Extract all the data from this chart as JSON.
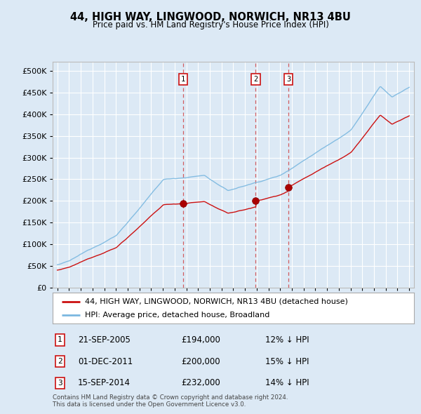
{
  "title": "44, HIGH WAY, LINGWOOD, NORWICH, NR13 4BU",
  "subtitle": "Price paid vs. HM Land Registry's House Price Index (HPI)",
  "legend_line1": "44, HIGH WAY, LINGWOOD, NORWICH, NR13 4BU (detached house)",
  "legend_line2": "HPI: Average price, detached house, Broadland",
  "footer1": "Contains HM Land Registry data © Crown copyright and database right 2024.",
  "footer2": "This data is licensed under the Open Government Licence v3.0.",
  "transactions": [
    {
      "num": 1,
      "date": "21-SEP-2005",
      "price": "£194,000",
      "pct": "12% ↓ HPI",
      "year": 2005.72,
      "price_val": 194000
    },
    {
      "num": 2,
      "date": "01-DEC-2011",
      "price": "£200,000",
      "pct": "15% ↓ HPI",
      "year": 2011.92,
      "price_val": 200000
    },
    {
      "num": 3,
      "date": "15-SEP-2014",
      "price": "£232,000",
      "pct": "14% ↓ HPI",
      "year": 2014.71,
      "price_val": 232000
    }
  ],
  "hpi_color": "#7bb8e0",
  "price_color": "#cc1111",
  "background_color": "#dce9f5",
  "plot_bg_color": "#dce9f5",
  "grid_color": "#ffffff",
  "ylim": [
    0,
    520000
  ],
  "yticks": [
    0,
    50000,
    100000,
    150000,
    200000,
    250000,
    300000,
    350000,
    400000,
    450000,
    500000
  ],
  "xlim_start": 1994.6,
  "xlim_end": 2025.4
}
